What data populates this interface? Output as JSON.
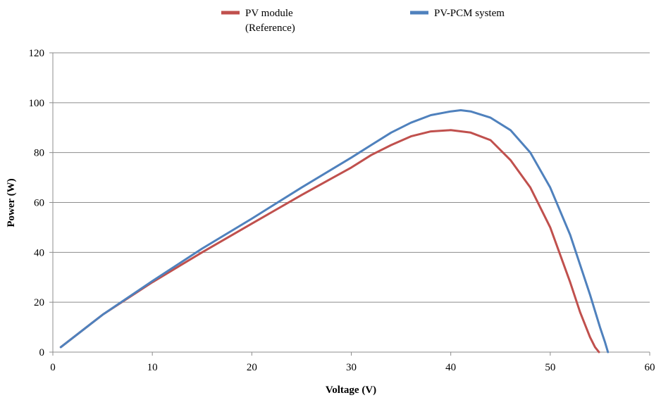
{
  "chart_data": {
    "type": "line",
    "title": "",
    "xlabel": "Voltage (V)",
    "ylabel": "Power (W)",
    "xlim": [
      0,
      60
    ],
    "ylim": [
      0,
      120
    ],
    "x_ticks": [
      0,
      10,
      20,
      30,
      40,
      50,
      60
    ],
    "y_ticks": [
      0,
      20,
      40,
      60,
      80,
      100,
      120
    ],
    "grid": "horizontal",
    "legend_position": "top",
    "series": [
      {
        "name": "PV module\n(Reference)",
        "legend_lines": [
          "PV module",
          "(Reference)"
        ],
        "color": "#c0504d",
        "x": [
          0.8,
          5,
          10,
          15,
          20,
          25,
          30,
          32,
          34,
          36,
          38,
          40,
          42,
          44,
          46,
          48,
          50,
          52,
          53,
          54,
          54.5,
          54.9
        ],
        "y": [
          2,
          15,
          28,
          40,
          51.5,
          63,
          74,
          79,
          83,
          86.5,
          88.5,
          89,
          88,
          85,
          77,
          66,
          50,
          28,
          16,
          6,
          2,
          0
        ]
      },
      {
        "name": "PV-PCM system",
        "legend_lines": [
          "PV-PCM system"
        ],
        "color": "#4f81bd",
        "x": [
          0.8,
          5,
          10,
          15,
          20,
          25,
          30,
          32,
          34,
          36,
          38,
          40,
          41,
          42,
          44,
          46,
          48,
          50,
          52,
          54,
          55,
          55.5,
          55.8
        ],
        "y": [
          2,
          15,
          28.5,
          41.5,
          53.5,
          66,
          78,
          83,
          88,
          92,
          95,
          96.5,
          97,
          96.5,
          94,
          89,
          80,
          66,
          47,
          23,
          10,
          4,
          0
        ]
      }
    ]
  }
}
